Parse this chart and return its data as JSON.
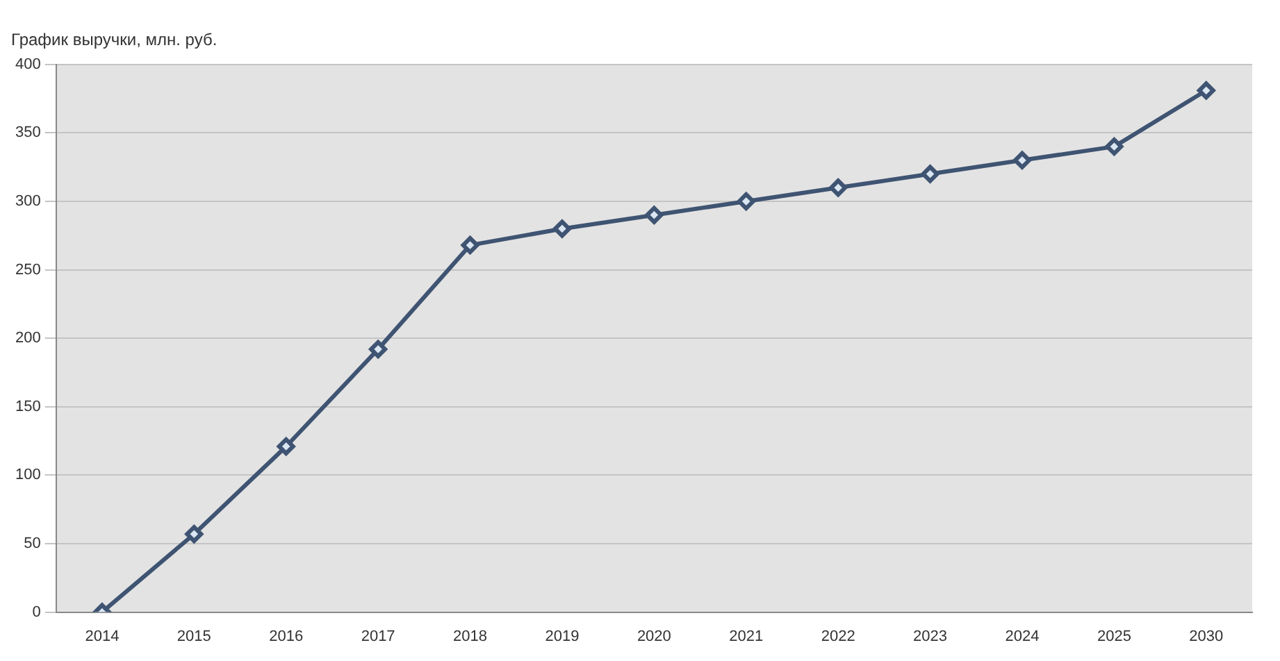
{
  "chart_data": {
    "type": "line",
    "title": "График выручки, млн. руб.",
    "categories": [
      "2014",
      "2015",
      "2016",
      "2017",
      "2018",
      "2019",
      "2020",
      "2021",
      "2022",
      "2023",
      "2024",
      "2025",
      "2030"
    ],
    "series": [
      {
        "color": "#3f5472",
        "values": [
          0,
          57,
          121,
          192,
          268,
          280,
          290,
          300,
          310,
          320,
          330,
          340,
          381
        ]
      }
    ],
    "ylim": [
      0,
      400
    ],
    "yticks": [
      0,
      50,
      100,
      150,
      200,
      250,
      300,
      350,
      400
    ],
    "grid": "y",
    "legend": false,
    "marker": "diamond",
    "line_style": "solid"
  }
}
